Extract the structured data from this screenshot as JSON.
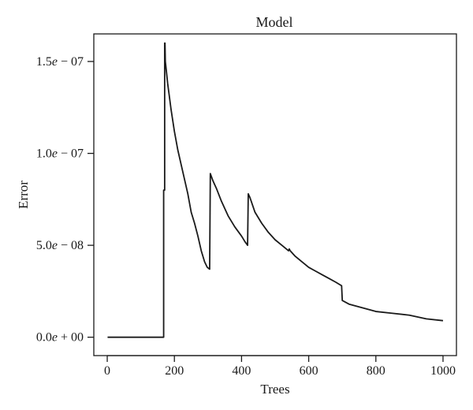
{
  "chart_data": {
    "type": "line",
    "title": "Model",
    "xlabel": "Trees",
    "ylabel": "Error",
    "xlim": [
      -40,
      1040
    ],
    "ylim": [
      -1e-08,
      1.65e-07
    ],
    "grid": false,
    "legend": "none",
    "xticks": [
      {
        "value": 0,
        "label": "0"
      },
      {
        "value": 200,
        "label": "200"
      },
      {
        "value": 400,
        "label": "400"
      },
      {
        "value": 600,
        "label": "600"
      },
      {
        "value": 800,
        "label": "800"
      },
      {
        "value": 1000,
        "label": "1000"
      }
    ],
    "yticks": [
      {
        "value": 0,
        "mantissa": "0.0",
        "e": "e",
        "exponent": " + 00"
      },
      {
        "value": 5e-08,
        "mantissa": "5.0",
        "e": "e",
        "exponent": " − 08"
      },
      {
        "value": 1e-07,
        "mantissa": "1.0",
        "e": "e",
        "exponent": " − 07"
      },
      {
        "value": 1.5e-07,
        "mantissa": "1.5",
        "e": "e",
        "exponent": " − 07"
      }
    ],
    "series": [
      {
        "color": "#1a1a1a",
        "points": [
          [
            1,
            0
          ],
          [
            168,
            0
          ],
          [
            168,
            8e-08
          ],
          [
            171,
            8e-08
          ],
          [
            171,
            1.6e-07
          ],
          [
            172,
            1.6e-07
          ],
          [
            173,
            1.5e-07
          ],
          [
            176,
            1.45e-07
          ],
          [
            180,
            1.38e-07
          ],
          [
            185,
            1.31e-07
          ],
          [
            190,
            1.24e-07
          ],
          [
            195,
            1.18e-07
          ],
          [
            200,
            1.12e-07
          ],
          [
            210,
            1.02e-07
          ],
          [
            220,
            9.4e-08
          ],
          [
            230,
            8.6e-08
          ],
          [
            240,
            7.8e-08
          ],
          [
            250,
            6.8e-08
          ],
          [
            260,
            6.2e-08
          ],
          [
            270,
            5.5e-08
          ],
          [
            280,
            4.7e-08
          ],
          [
            290,
            4.1e-08
          ],
          [
            298,
            3.8e-08
          ],
          [
            305,
            3.7e-08
          ],
          [
            307,
            8.9e-08
          ],
          [
            315,
            8.5e-08
          ],
          [
            325,
            8.1e-08
          ],
          [
            340,
            7.4e-08
          ],
          [
            360,
            6.6e-08
          ],
          [
            380,
            6e-08
          ],
          [
            400,
            5.5e-08
          ],
          [
            410,
            5.2e-08
          ],
          [
            418,
            5e-08
          ],
          [
            420,
            7.8e-08
          ],
          [
            425,
            7.6e-08
          ],
          [
            440,
            6.8e-08
          ],
          [
            460,
            6.2e-08
          ],
          [
            480,
            5.7e-08
          ],
          [
            500,
            5.3e-08
          ],
          [
            520,
            5e-08
          ],
          [
            540,
            4.7e-08
          ],
          [
            542,
            4.8e-08
          ],
          [
            545,
            4.7e-08
          ],
          [
            560,
            4.4e-08
          ],
          [
            580,
            4.1e-08
          ],
          [
            600,
            3.8e-08
          ],
          [
            620,
            3.6e-08
          ],
          [
            640,
            3.4e-08
          ],
          [
            660,
            3.2e-08
          ],
          [
            680,
            3e-08
          ],
          [
            698,
            2.8e-08
          ],
          [
            700,
            2e-08
          ],
          [
            720,
            1.8e-08
          ],
          [
            760,
            1.6e-08
          ],
          [
            800,
            1.4e-08
          ],
          [
            850,
            1.3e-08
          ],
          [
            900,
            1.2e-08
          ],
          [
            950,
            1e-08
          ],
          [
            1000,
            9e-09
          ]
        ]
      }
    ]
  }
}
